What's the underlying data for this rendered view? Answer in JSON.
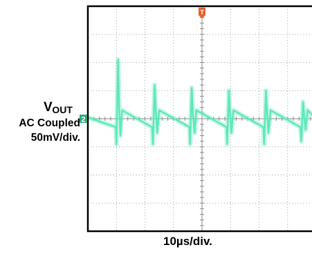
{
  "chart_data": {
    "type": "line",
    "title": "",
    "ylabel": {
      "main": "V",
      "subscript": "OUT",
      "coupling": "AC Coupled",
      "scale": "50mV/div."
    },
    "xlabel": "10µs/div.",
    "grid": true,
    "xdivs": 8,
    "ydivs": 8,
    "xlim_div": [
      0,
      8
    ],
    "ylim_div": [
      -4,
      4
    ],
    "ground_marker": {
      "label": "2",
      "color": "#35a87c"
    },
    "trigger_marker": {
      "label": "T",
      "color": "#e8622a"
    },
    "trace_color": "#5ee8b8",
    "series": [
      {
        "x_div": [
          0,
          0.98,
          1.0,
          1.06,
          1.09,
          1.14,
          1.2,
          2.25,
          2.28,
          2.34,
          2.38,
          2.43,
          2.5,
          3.56,
          3.58,
          3.64,
          3.68,
          3.74,
          3.8,
          4.86,
          4.88,
          4.94,
          4.98,
          5.03,
          5.1,
          6.15,
          6.18,
          6.24,
          6.28,
          6.33,
          6.4,
          7.45,
          7.48,
          7.54,
          7.58,
          7.63,
          7.7,
          8.0
        ],
        "y_div": [
          0.05,
          -0.3,
          -0.9,
          2.1,
          0.6,
          -0.6,
          0.3,
          -0.3,
          -0.9,
          1.2,
          0.3,
          -0.5,
          0.3,
          -0.3,
          -0.9,
          1.1,
          0.2,
          -0.5,
          0.3,
          -0.3,
          -0.9,
          1.0,
          0.2,
          -0.5,
          0.3,
          -0.3,
          -0.9,
          1.0,
          0.2,
          -0.5,
          0.3,
          -0.3,
          -0.8,
          0.6,
          0.1,
          -0.4,
          0.3,
          0.0
        ]
      }
    ]
  }
}
